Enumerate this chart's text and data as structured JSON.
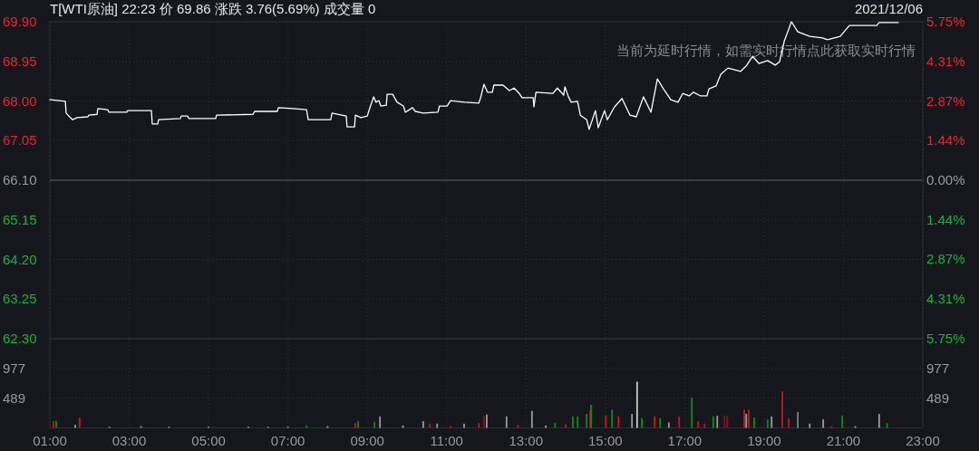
{
  "chart_data": [
    {
      "type": "line",
      "title": "T[WTI原油] 22:23 价 69.86 涨跌 3.76(5.69%) 成交量 0",
      "subtitle": "2021/12/06",
      "annotations": [
        "当前为延时行情，如需实时行情点此获取实时行情"
      ],
      "x": [
        1.0,
        1.02,
        1.39,
        1.41,
        1.57,
        1.69,
        1.96,
        1.98,
        2.19,
        2.21,
        2.46,
        2.49,
        2.94,
        2.96,
        3.56,
        3.58,
        3.72,
        3.74,
        4.29,
        4.31,
        4.47,
        4.5,
        5.18,
        5.2,
        6.12,
        6.16,
        6.73,
        6.76,
        7.12,
        7.47,
        7.51,
        8.08,
        8.11,
        8.47,
        8.49,
        8.68,
        8.7,
        8.84,
        9.0,
        9.06,
        9.16,
        9.22,
        9.29,
        9.34,
        9.48,
        9.5,
        9.64,
        9.75,
        9.91,
        9.96,
        10.14,
        10.21,
        10.41,
        10.78,
        10.82,
        11.01,
        11.1,
        11.46,
        11.81,
        11.85,
        11.94,
        12.03,
        12.15,
        12.19,
        12.42,
        12.58,
        12.7,
        12.83,
        12.9,
        13.18,
        13.2,
        13.25,
        13.68,
        13.79,
        13.95,
        13.98,
        14.07,
        14.14,
        14.3,
        14.37,
        14.53,
        14.59,
        14.75,
        14.82,
        14.98,
        15.05,
        15.23,
        15.42,
        15.62,
        15.78,
        15.96,
        16.15,
        16.31,
        16.49,
        16.65,
        16.83,
        16.95,
        17.11,
        17.22,
        17.4,
        17.56,
        17.61,
        17.79,
        17.91,
        18.09,
        18.41,
        18.55,
        18.71,
        18.87,
        19.09,
        19.28,
        19.39,
        19.51,
        19.69,
        19.85,
        20.15,
        20.47,
        20.6,
        20.92,
        21.15,
        21.84,
        21.9,
        22.38
      ],
      "series": [
        {
          "color": "#ffffff",
          "values": [
            68.03,
            68.03,
            67.99,
            67.71,
            67.55,
            67.6,
            67.62,
            67.66,
            67.68,
            67.82,
            67.79,
            67.73,
            67.73,
            67.77,
            67.77,
            67.45,
            67.45,
            67.55,
            67.58,
            67.64,
            67.64,
            67.58,
            67.58,
            67.66,
            67.68,
            67.75,
            67.75,
            67.84,
            67.82,
            67.79,
            67.55,
            67.55,
            67.71,
            67.64,
            67.38,
            67.38,
            67.66,
            67.6,
            67.64,
            67.82,
            68.1,
            67.97,
            68.01,
            67.88,
            67.9,
            68.16,
            68.16,
            67.97,
            67.88,
            67.73,
            67.84,
            67.75,
            67.71,
            67.73,
            67.88,
            67.88,
            68.01,
            67.97,
            67.95,
            68.06,
            68.4,
            68.21,
            68.21,
            68.38,
            68.38,
            68.25,
            68.31,
            68.18,
            68.08,
            68.08,
            67.86,
            68.21,
            68.18,
            68.31,
            68.14,
            68.34,
            68.1,
            67.97,
            67.99,
            67.66,
            67.55,
            67.32,
            67.77,
            67.36,
            67.77,
            67.55,
            67.86,
            68.06,
            67.66,
            67.62,
            68.1,
            67.73,
            68.53,
            68.25,
            68.03,
            67.97,
            68.18,
            68.12,
            68.21,
            68.12,
            68.12,
            68.29,
            68.36,
            68.64,
            68.79,
            68.71,
            68.84,
            69.07,
            68.9,
            68.97,
            68.86,
            68.94,
            69.44,
            69.9,
            69.66,
            69.55,
            69.51,
            69.47,
            69.55,
            69.81,
            69.81,
            69.88,
            69.88
          ]
        }
      ],
      "xlim": [
        1,
        23
      ],
      "xticks": [
        {
          "value": 1,
          "label": null
        },
        {
          "value": 3,
          "label": null
        },
        {
          "value": 5,
          "label": null
        },
        {
          "value": 7,
          "label": null
        },
        {
          "value": 9,
          "label": null
        },
        {
          "value": 11,
          "label": null
        },
        {
          "value": 13,
          "label": null
        },
        {
          "value": 15,
          "label": null
        },
        {
          "value": 17,
          "label": null
        },
        {
          "value": 19,
          "label": null
        },
        {
          "value": 21,
          "label": null
        },
        {
          "value": 23,
          "label": null
        }
      ],
      "ylim": [
        62.3,
        69.9
      ],
      "yticks": [
        {
          "value": 62.3,
          "label": "62.30"
        },
        63.25,
        {
          "value": 64.2,
          "label": "64.20"
        },
        65.15,
        {
          "value": 66.1,
          "label": "66.10"
        },
        67.05,
        {
          "value": 68,
          "label": "68.00"
        },
        68.95,
        {
          "value": 69.9,
          "label": "69.90"
        }
      ],
      "y2lim": [
        -5.75,
        5.75
      ],
      "y2ticks": [
        {
          "value": -5.75,
          "label": "5.75%"
        },
        {
          "value": -4.31,
          "label": "4.31%"
        },
        {
          "value": -2.87,
          "label": "2.87%"
        },
        {
          "value": -1.44,
          "label": "1.44%"
        },
        {
          "value": 0,
          "label": "0.00%"
        },
        {
          "value": 1.44,
          "label": "1.44%"
        },
        {
          "value": 2.87,
          "label": "2.87%"
        },
        {
          "value": 4.31,
          "label": "4.31%"
        },
        {
          "value": 5.75,
          "label": "5.75%"
        }
      ],
      "ref_lines": [
        {
          "axis": "y",
          "value": 66.1,
          "color": "#474a52"
        }
      ],
      "grid": true,
      "tick_labels": "y"
    },
    {
      "type": "bar",
      "x": [
        1.09,
        1.16,
        1.64,
        1.75,
        2.5,
        3.3,
        4.0,
        5.0,
        6.0,
        6.5,
        7.0,
        7.47,
        8.0,
        8.7,
        8.77,
        9.18,
        9.32,
        9.9,
        10.41,
        10.57,
        10.76,
        11.1,
        11.44,
        11.81,
        11.94,
        12.01,
        12.51,
        12.8,
        13.15,
        13.5,
        13.73,
        14.0,
        14.18,
        14.3,
        14.53,
        14.62,
        14.64,
        15.01,
        15.17,
        15.33,
        15.67,
        15.8,
        15.92,
        16.24,
        16.38,
        16.6,
        16.86,
        17.18,
        17.34,
        17.5,
        17.72,
        17.82,
        18.0,
        18.07,
        18.5,
        18.55,
        18.61,
        18.75,
        19.09,
        19.19,
        19.46,
        19.62,
        19.85,
        20.15,
        20.49,
        20.7,
        20.97,
        21.3,
        21.9,
        22.1
      ],
      "values": [
        110,
        120,
        50,
        170,
        20,
        30,
        20,
        20,
        20,
        20,
        20,
        40,
        30,
        80,
        110,
        100,
        190,
        40,
        110,
        70,
        70,
        30,
        70,
        80,
        200,
        220,
        190,
        50,
        280,
        40,
        80,
        60,
        190,
        190,
        230,
        290,
        380,
        200,
        300,
        190,
        230,
        760,
        160,
        190,
        160,
        90,
        190,
        500,
        110,
        70,
        190,
        200,
        200,
        200,
        300,
        230,
        300,
        170,
        140,
        190,
        600,
        160,
        260,
        70,
        140,
        30,
        200,
        30,
        230,
        80
      ],
      "colors": [
        "#c4161c",
        "#138a13",
        "#9a9a9a",
        "#c4161c",
        "#9a9a9a",
        "#9a9a9a",
        "#9a9a9a",
        "#9a9a9a",
        "#9a9a9a",
        "#9a9a9a",
        "#9a9a9a",
        "#138a13",
        "#9a9a9a",
        "#c4161c",
        "#138a13",
        "#138a13",
        "#9a9a9a",
        "#9a9a9a",
        "#9a9a9a",
        "#c4161c",
        "#9a9a9a",
        "#c4161c",
        "#9a9a9a",
        "#c4161c",
        "#8a1014",
        "#9a9a9a",
        "#9a9a9a",
        "#c4161c",
        "#9a9a9a",
        "#9a9a9a",
        "#138a13",
        "#c4161c",
        "#138a13",
        "#138a13",
        "#138a13",
        "#c4161c",
        "#138a13",
        "#c4161c",
        "#138a13",
        "#c4161c",
        "#9a9a9a",
        "#c8c8c8",
        "#138a13",
        "#c4161c",
        "#138a13",
        "#9a9a9a",
        "#c4161c",
        "#138a13",
        "#c4161c",
        "#c4161c",
        "#138a13",
        "#9a9a9a",
        "#8a1014",
        "#8a1014",
        "#c4161c",
        "#9a9a9a",
        "#c4161c",
        "#138a13",
        "#138a13",
        "#9a9a9a",
        "#c4161c",
        "#c4161c",
        "#808080",
        "#9a9a9a",
        "#9a9a9a",
        "#c4161c",
        "#138a13",
        "#9a9a9a",
        "#9a9a9a",
        "#138a13"
      ],
      "xlim": [
        1,
        23
      ],
      "xticks": [
        {
          "value": 1,
          "label": "01:00"
        },
        {
          "value": 3,
          "label": "03:00"
        },
        {
          "value": 5,
          "label": "05:00"
        },
        {
          "value": 7,
          "label": "07:00"
        },
        {
          "value": 9,
          "label": "09:00"
        },
        {
          "value": 11,
          "label": "11:00"
        },
        {
          "value": 13,
          "label": "13:00"
        },
        {
          "value": 15,
          "label": "15:00"
        },
        {
          "value": 17,
          "label": "17:00"
        },
        {
          "value": 19,
          "label": "19:00"
        },
        {
          "value": 21,
          "label": "21:00"
        },
        {
          "value": 23,
          "label": "23:00"
        }
      ],
      "ylim": [
        0,
        1466
      ],
      "yticks": [
        489,
        977
      ],
      "y2lim": [
        0,
        1466
      ],
      "y2ticks": [
        489,
        977
      ],
      "grid": true
    }
  ]
}
